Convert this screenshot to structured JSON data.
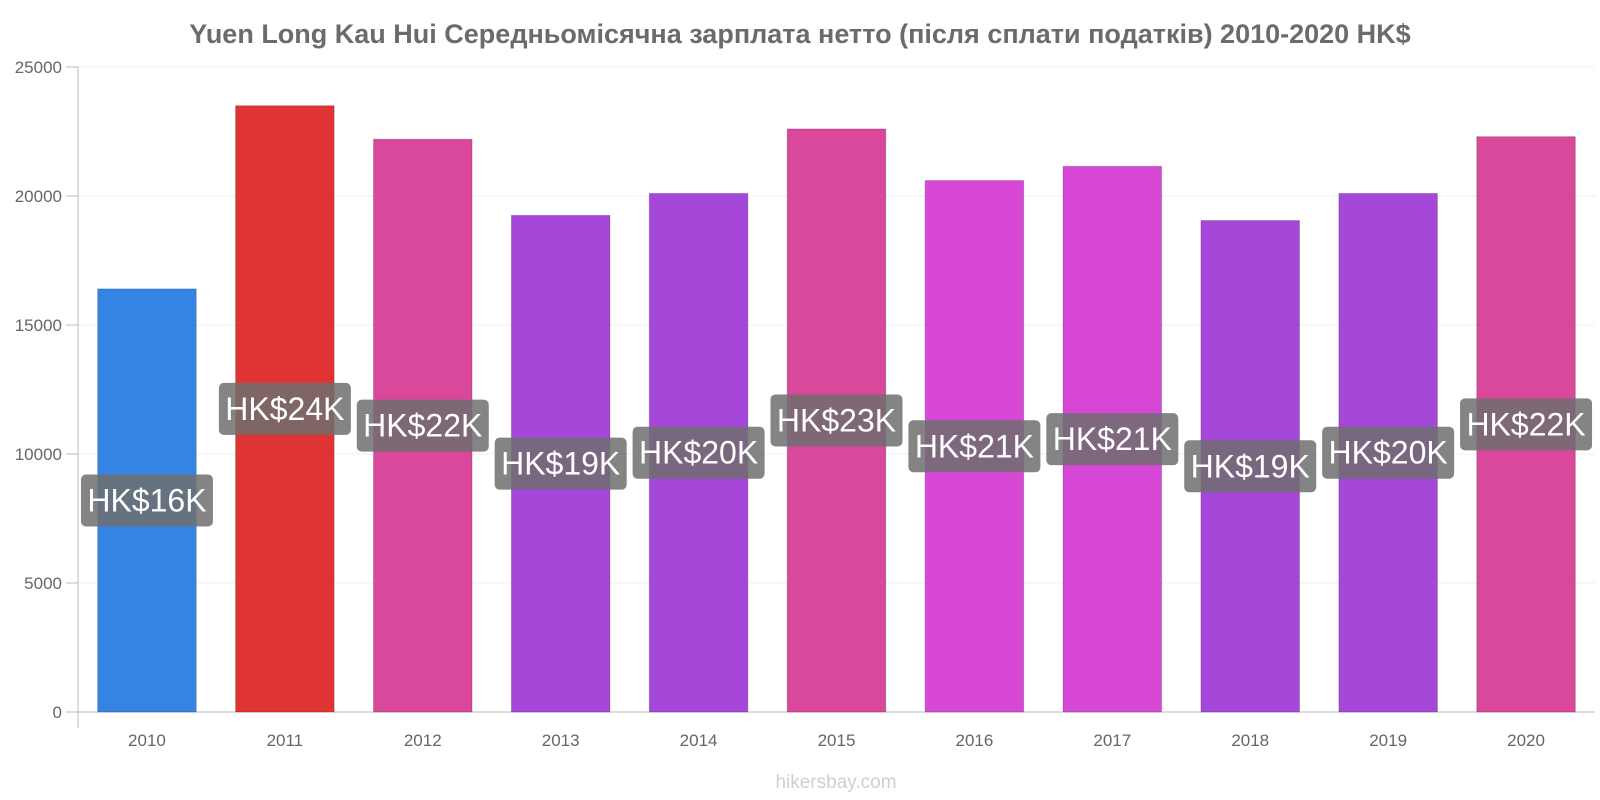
{
  "chart_data": {
    "type": "bar",
    "title": "Yuen Long Kau Hui Середньомісячна зарплата нетто (після сплати податків) 2010-2020 HK$",
    "categories": [
      "2010",
      "2011",
      "2012",
      "2013",
      "2014",
      "2015",
      "2016",
      "2017",
      "2018",
      "2019",
      "2020"
    ],
    "values": [
      16400,
      23500,
      22200,
      19250,
      20100,
      22600,
      20600,
      21150,
      19050,
      20100,
      22300
    ],
    "data_labels": [
      "HK$16K",
      "HK$24K",
      "HK$22K",
      "HK$19K",
      "HK$20K",
      "HK$23K",
      "HK$21K",
      "HK$21K",
      "HK$19K",
      "HK$20K",
      "HK$22K"
    ],
    "bar_colors": [
      "#3584e4",
      "#e03434",
      "#d9489b",
      "#a548d9",
      "#a548d9",
      "#d9489b",
      "#d848d6",
      "#d848d6",
      "#a548d9",
      "#a548d9",
      "#d9489b"
    ],
    "label_bg_color": "#6e6e6e",
    "ylim": [
      0,
      25000
    ],
    "yticks": [
      0,
      5000,
      10000,
      15000,
      20000,
      25000
    ],
    "xlabel": "",
    "ylabel": "",
    "grid": true,
    "legend": "none"
  },
  "watermark": "hikersbay.com"
}
